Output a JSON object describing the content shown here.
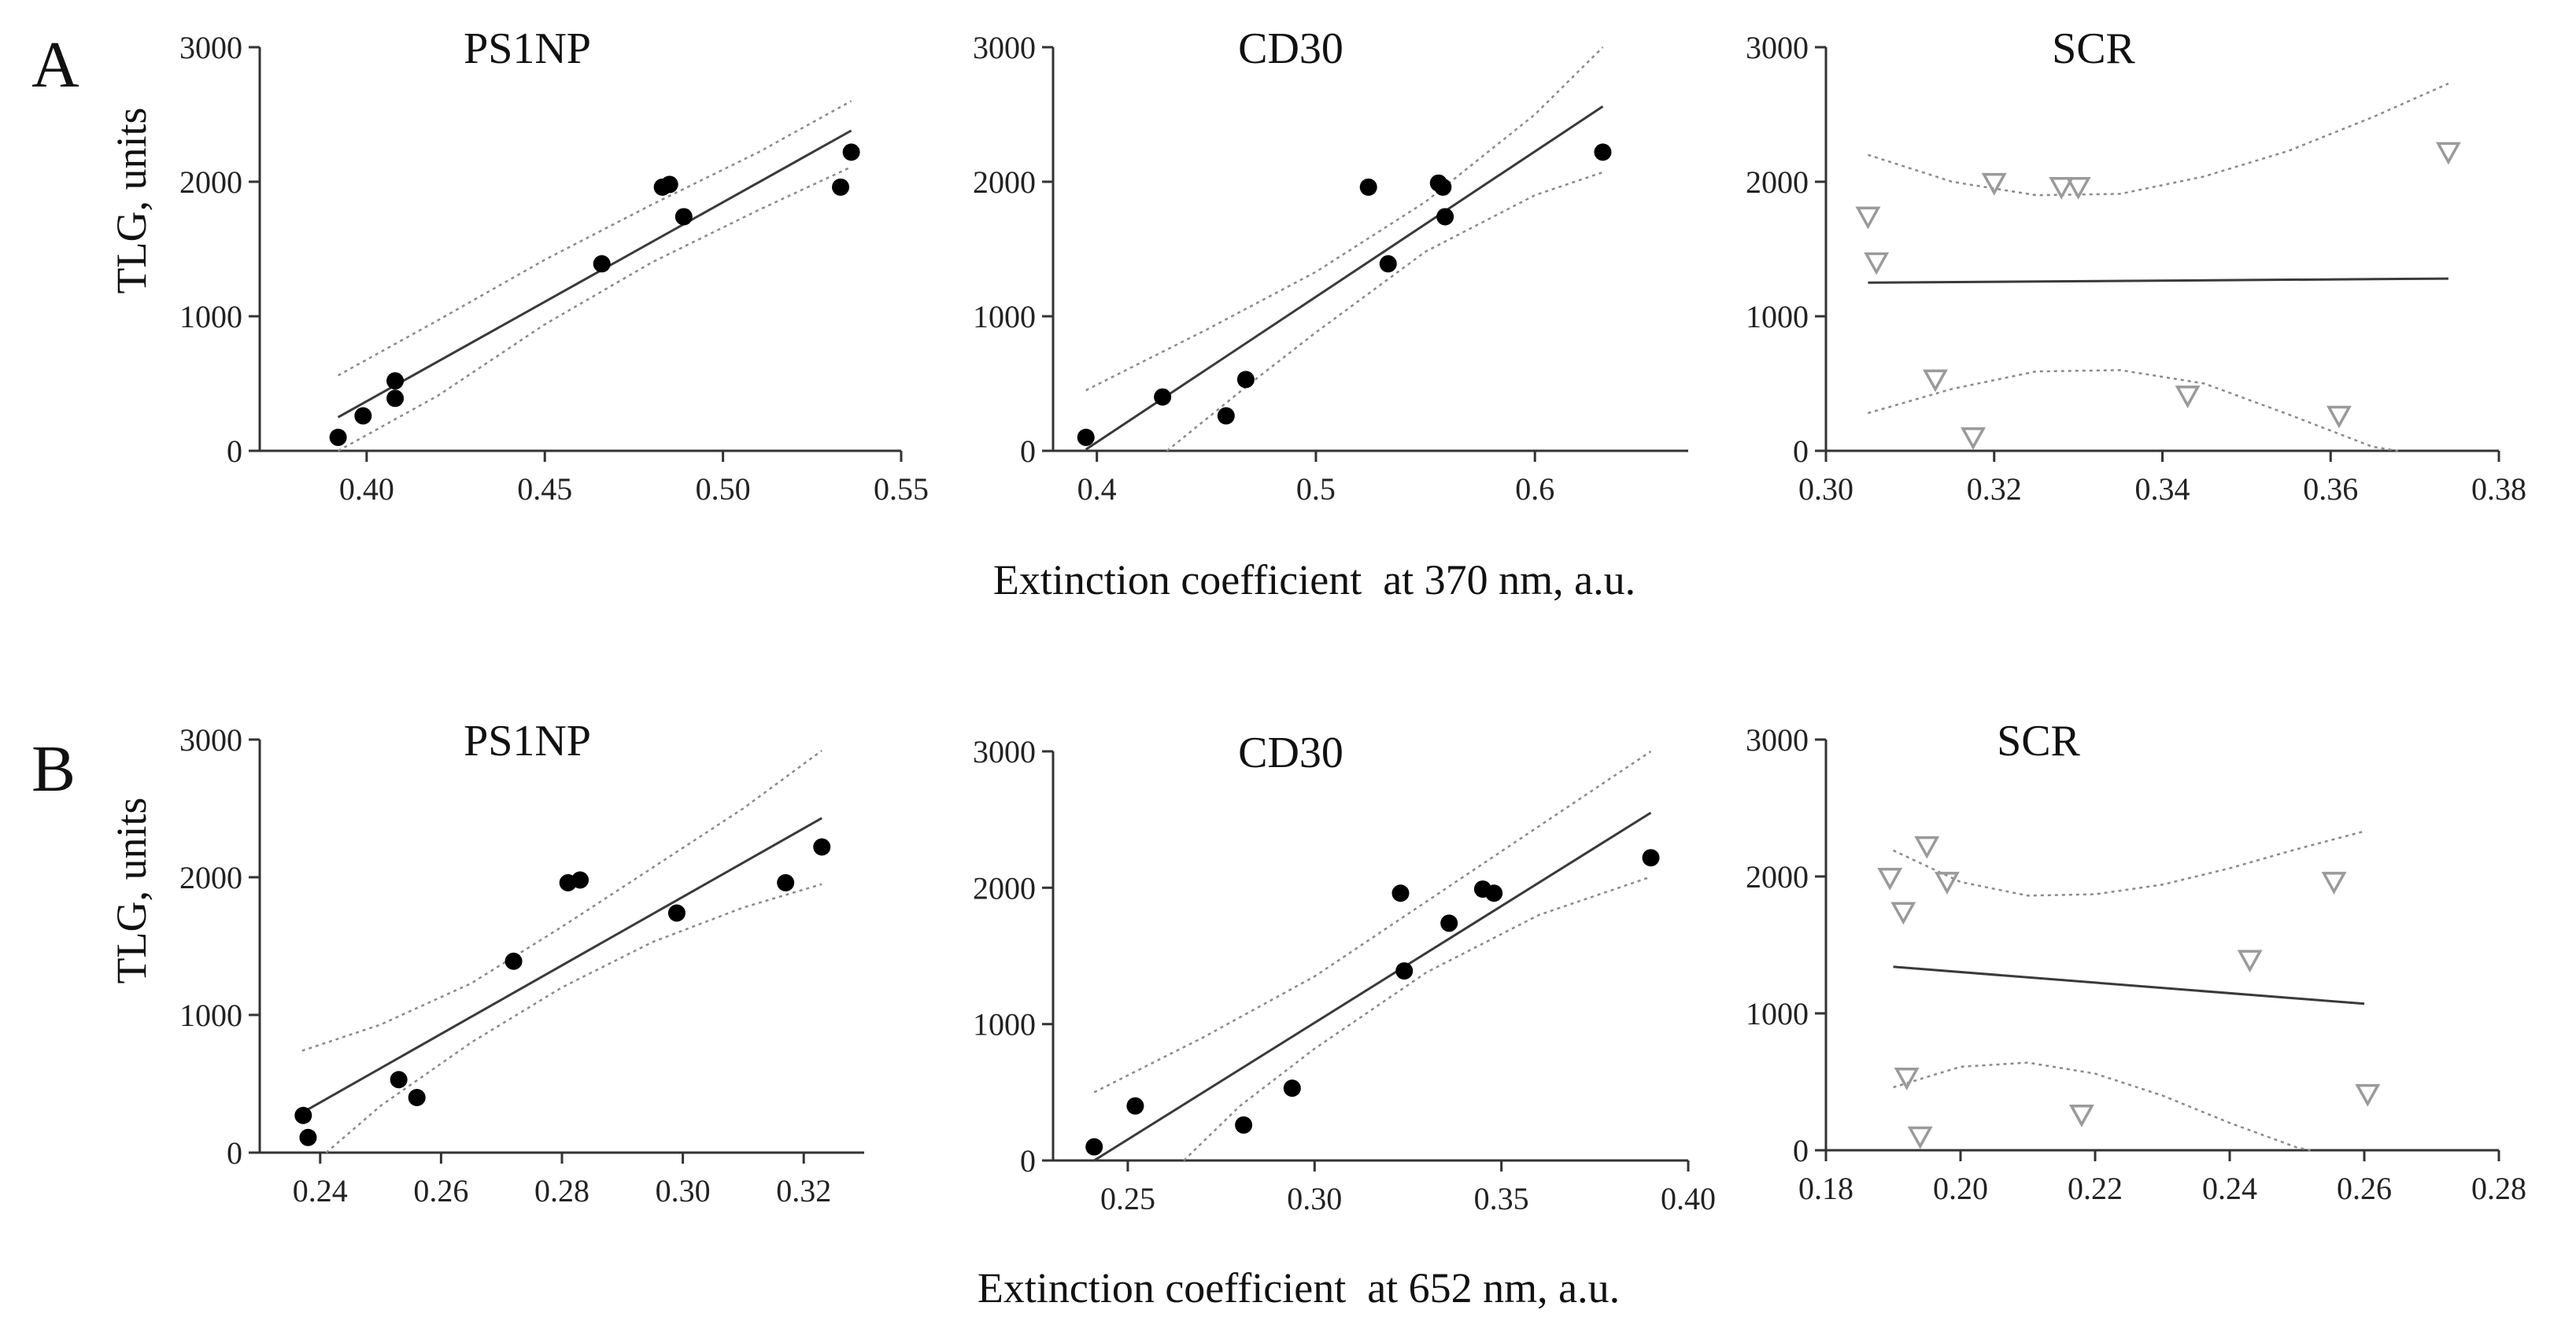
{
  "figure": {
    "row_labels": [
      "A",
      "B"
    ],
    "y_axis_title": "TLG, units",
    "x_axis_titles": [
      "Extinction coefficient  at 370 nm, a.u.",
      "Extinction coefficient  at 652 nm, a.u."
    ]
  },
  "chart_data": [
    {
      "type": "scatter",
      "panel": "A-PS1NP",
      "title": "PS1NP",
      "marker": "circle",
      "xlabel": "Extinction coefficient  at 370 nm, a.u.",
      "ylabel": "TLG, units",
      "xlim": [
        0.37,
        0.55
      ],
      "ylim": [
        0,
        3000
      ],
      "xticks": [
        0.4,
        0.45,
        0.5,
        0.55
      ],
      "xtick_labels": [
        "0.40",
        "0.45",
        "0.50",
        "0.55"
      ],
      "yticks": [
        0,
        1000,
        2000,
        3000
      ],
      "ytick_labels": [
        "0",
        "1000",
        "2000",
        "3000"
      ],
      "x": [
        0.392,
        0.399,
        0.408,
        0.408,
        0.466,
        0.483,
        0.485,
        0.489,
        0.533,
        0.536
      ],
      "y": [
        100,
        260,
        390,
        520,
        1390,
        1960,
        1980,
        1740,
        1960,
        2220
      ],
      "fit": {
        "x": [
          0.392,
          0.536
        ],
        "y": [
          250,
          2380
        ]
      },
      "ci_upper": {
        "x": [
          0.392,
          0.42,
          0.45,
          0.48,
          0.51,
          0.536
        ],
        "y": [
          560,
          970,
          1420,
          1830,
          2220,
          2600
        ]
      },
      "ci_lower": {
        "x": [
          0.392,
          0.42,
          0.45,
          0.48,
          0.51,
          0.536
        ],
        "y": [
          -70,
          410,
          940,
          1400,
          1790,
          2110
        ]
      }
    },
    {
      "type": "scatter",
      "panel": "A-CD30",
      "title": "CD30",
      "marker": "circle",
      "xlabel": "Extinction coefficient  at 370 nm, a.u.",
      "ylabel": "TLG, units",
      "xlim": [
        0.38,
        0.67
      ],
      "ylim": [
        0,
        3000
      ],
      "xticks": [
        0.4,
        0.5,
        0.6
      ],
      "xtick_labels": [
        "0.4",
        "0.5",
        "0.6"
      ],
      "yticks": [
        0,
        1000,
        2000,
        3000
      ],
      "ytick_labels": [
        "0",
        "1000",
        "2000",
        "3000"
      ],
      "x": [
        0.395,
        0.43,
        0.459,
        0.468,
        0.524,
        0.533,
        0.556,
        0.558,
        0.559,
        0.631
      ],
      "y": [
        100,
        400,
        260,
        530,
        1960,
        1390,
        1990,
        1960,
        1740,
        2220
      ],
      "fit": {
        "x": [
          0.395,
          0.631
        ],
        "y": [
          10,
          2560
        ]
      },
      "ci_upper": {
        "x": [
          0.395,
          0.45,
          0.5,
          0.55,
          0.6,
          0.631
        ],
        "y": [
          450,
          900,
          1330,
          1850,
          2500,
          3000
        ]
      },
      "ci_lower": {
        "x": [
          0.432,
          0.47,
          0.5,
          0.55,
          0.6,
          0.631
        ],
        "y": [
          0,
          500,
          880,
          1480,
          1900,
          2070
        ]
      }
    },
    {
      "type": "scatter",
      "panel": "A-SCR",
      "title": "SCR",
      "marker": "triangle-down",
      "xlabel": "Extinction coefficient  at 370 nm, a.u.",
      "ylabel": "TLG, units",
      "xlim": [
        0.3,
        0.38
      ],
      "ylim": [
        0,
        3000
      ],
      "xticks": [
        0.3,
        0.32,
        0.34,
        0.36,
        0.38
      ],
      "xtick_labels": [
        "0.30",
        "0.32",
        "0.34",
        "0.36",
        "0.38"
      ],
      "yticks": [
        0,
        1000,
        2000,
        3000
      ],
      "ytick_labels": [
        "0",
        "1000",
        "2000",
        "3000"
      ],
      "x": [
        0.305,
        0.306,
        0.313,
        0.3175,
        0.32,
        0.328,
        0.33,
        0.343,
        0.361,
        0.374
      ],
      "y": [
        1740,
        1400,
        530,
        100,
        1990,
        1960,
        1960,
        410,
        260,
        2220
      ],
      "fit": {
        "x": [
          0.305,
          0.374
        ],
        "y": [
          1250,
          1280
        ]
      },
      "ci_upper": {
        "x": [
          0.305,
          0.315,
          0.325,
          0.335,
          0.345,
          0.355,
          0.365,
          0.374
        ],
        "y": [
          2200,
          2000,
          1900,
          1910,
          2040,
          2230,
          2480,
          2730
        ]
      },
      "ci_lower": {
        "x": [
          0.305,
          0.315,
          0.325,
          0.335,
          0.345,
          0.355,
          0.365,
          0.368
        ],
        "y": [
          280,
          460,
          590,
          600,
          500,
          270,
          30,
          0
        ]
      }
    },
    {
      "type": "scatter",
      "panel": "B-PS1NP",
      "title": "PS1NP",
      "marker": "circle",
      "xlabel": "Extinction coefficient  at 652 nm, a.u.",
      "ylabel": "TLG, units",
      "xlim": [
        0.23,
        0.33
      ],
      "ylim": [
        0,
        3000
      ],
      "xticks": [
        0.24,
        0.26,
        0.28,
        0.3,
        0.32
      ],
      "xtick_labels": [
        "0.24",
        "0.26",
        "0.28",
        "0.30",
        "0.32"
      ],
      "yticks": [
        0,
        1000,
        2000,
        3000
      ],
      "ytick_labels": [
        "0",
        "1000",
        "2000",
        "3000"
      ],
      "x": [
        0.2372,
        0.238,
        0.253,
        0.256,
        0.272,
        0.281,
        0.283,
        0.299,
        0.317,
        0.323
      ],
      "y": [
        270,
        110,
        530,
        400,
        1390,
        1960,
        1980,
        1740,
        1960,
        2220
      ],
      "fit": {
        "x": [
          0.237,
          0.323
        ],
        "y": [
          290,
          2430
        ]
      },
      "ci_upper": {
        "x": [
          0.237,
          0.25,
          0.265,
          0.28,
          0.295,
          0.31,
          0.323
        ],
        "y": [
          740,
          930,
          1230,
          1640,
          2070,
          2500,
          2920
        ]
      },
      "ci_lower": {
        "x": [
          0.241,
          0.25,
          0.265,
          0.28,
          0.295,
          0.31,
          0.323
        ],
        "y": [
          0,
          340,
          800,
          1200,
          1530,
          1780,
          1950
        ]
      }
    },
    {
      "type": "scatter",
      "panel": "B-CD30",
      "title": "CD30",
      "marker": "circle",
      "xlabel": "Extinction coefficient  at 652 nm, a.u.",
      "ylabel": "TLG, units",
      "xlim": [
        0.23,
        0.4
      ],
      "ylim": [
        0,
        3000
      ],
      "xticks": [
        0.25,
        0.3,
        0.35,
        0.4
      ],
      "xtick_labels": [
        "0.25",
        "0.30",
        "0.35",
        "0.40"
      ],
      "yticks": [
        0,
        1000,
        2000,
        3000
      ],
      "ytick_labels": [
        "0",
        "1000",
        "2000",
        "3000"
      ],
      "x": [
        0.241,
        0.252,
        0.281,
        0.294,
        0.323,
        0.324,
        0.336,
        0.345,
        0.348,
        0.39
      ],
      "y": [
        100,
        400,
        260,
        530,
        1960,
        1390,
        1740,
        1990,
        1960,
        2220
      ],
      "fit": {
        "x": [
          0.241,
          0.39
        ],
        "y": [
          0,
          2550
        ]
      },
      "ci_upper": {
        "x": [
          0.241,
          0.27,
          0.3,
          0.33,
          0.36,
          0.39
        ],
        "y": [
          500,
          900,
          1350,
          1900,
          2450,
          3000
        ]
      },
      "ci_lower": {
        "x": [
          0.265,
          0.28,
          0.3,
          0.33,
          0.36,
          0.39
        ],
        "y": [
          0,
          400,
          820,
          1380,
          1800,
          2080
        ]
      }
    },
    {
      "type": "scatter",
      "panel": "B-SCR",
      "title": "SCR",
      "marker": "triangle-down",
      "xlabel": "Extinction coefficient  at 652 nm, a.u.",
      "ylabel": "TLG, units",
      "xlim": [
        0.18,
        0.28
      ],
      "ylim": [
        0,
        3000
      ],
      "xticks": [
        0.18,
        0.2,
        0.22,
        0.24,
        0.26,
        0.28
      ],
      "xtick_labels": [
        "0.18",
        "0.20",
        "0.22",
        "0.24",
        "0.26",
        "0.28"
      ],
      "yticks": [
        0,
        1000,
        2000,
        3000
      ],
      "ytick_labels": [
        "0",
        "1000",
        "2000",
        "3000"
      ],
      "x": [
        0.1895,
        0.1915,
        0.192,
        0.194,
        0.195,
        0.198,
        0.218,
        0.243,
        0.2555,
        0.2605
      ],
      "y": [
        1990,
        1740,
        530,
        100,
        2220,
        1960,
        260,
        1390,
        1960,
        410
      ],
      "fit": {
        "x": [
          0.19,
          0.26
        ],
        "y": [
          1340,
          1070
        ]
      },
      "ci_upper": {
        "x": [
          0.19,
          0.2,
          0.21,
          0.22,
          0.23,
          0.24,
          0.25,
          0.26
        ],
        "y": [
          2190,
          1960,
          1860,
          1870,
          1940,
          2060,
          2200,
          2330
        ]
      },
      "ci_lower": {
        "x": [
          0.19,
          0.2,
          0.21,
          0.22,
          0.23,
          0.24,
          0.25,
          0.252
        ],
        "y": [
          460,
          610,
          640,
          560,
          400,
          200,
          20,
          0
        ]
      }
    }
  ]
}
